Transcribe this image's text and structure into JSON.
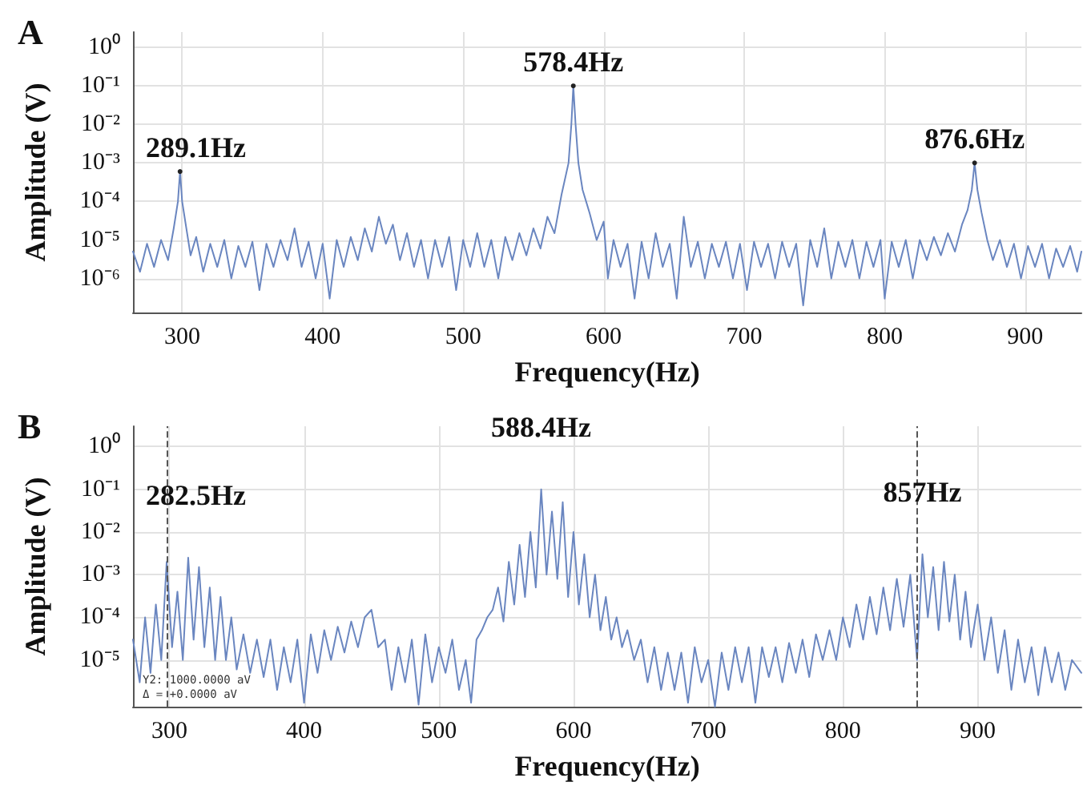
{
  "chart_data": [
    {
      "type": "line",
      "title": "A",
      "xlabel": "Frequency(Hz)",
      "ylabel": "Amplitude (V)",
      "log": "y",
      "grid": true,
      "xlim": [
        265,
        940
      ],
      "xticks": [
        300,
        400,
        500,
        600,
        700,
        800,
        900
      ],
      "ylim": [
        1.3e-07,
        2.5
      ],
      "yticks": [
        {
          "value": 1e-06,
          "label": "10⁻⁶"
        },
        {
          "value": 1e-05,
          "label": "10⁻⁵"
        },
        {
          "value": 0.0001,
          "label": "10⁻⁴"
        },
        {
          "value": 0.001,
          "label": "10⁻³"
        },
        {
          "value": 0.01,
          "label": "10⁻²"
        },
        {
          "value": 0.1,
          "label": "10⁻¹"
        },
        {
          "value": 1,
          "label": "10⁰"
        }
      ],
      "annotations": [
        {
          "text": "289.1Hz",
          "x": 298.5,
          "y": 0.0006
        },
        {
          "text": "578.4Hz",
          "x": 578.4,
          "y": 0.1
        },
        {
          "text": "876.6Hz",
          "x": 864,
          "y": 0.001
        }
      ],
      "series": [
        {
          "color": "#6a86c0",
          "x": [
            265,
            270,
            275,
            280,
            285,
            290,
            294,
            297,
            298.5,
            300,
            303,
            306,
            310,
            315,
            320,
            325,
            330,
            335,
            340,
            345,
            350,
            355,
            360,
            365,
            370,
            375,
            380,
            385,
            390,
            395,
            400,
            405,
            410,
            415,
            420,
            425,
            430,
            435,
            440,
            445,
            450,
            455,
            460,
            465,
            470,
            475,
            480,
            485,
            490,
            495,
            500,
            505,
            510,
            515,
            520,
            525,
            530,
            535,
            540,
            545,
            550,
            555,
            560,
            565,
            570,
            575,
            577,
            578.4,
            580,
            582,
            585,
            590,
            595,
            600,
            603,
            607,
            612,
            617,
            622,
            627,
            632,
            637,
            642,
            647,
            652,
            657,
            662,
            667,
            672,
            677,
            682,
            687,
            692,
            697,
            702,
            707,
            712,
            717,
            722,
            727,
            732,
            737,
            742,
            747,
            752,
            757,
            762,
            767,
            772,
            777,
            782,
            787,
            792,
            797,
            800,
            805,
            810,
            815,
            820,
            825,
            830,
            835,
            840,
            845,
            850,
            855,
            859,
            862,
            864,
            866,
            869,
            873,
            877,
            882,
            887,
            892,
            897,
            902,
            907,
            912,
            917,
            922,
            927,
            932,
            937,
            940
          ],
          "values": [
            5e-06,
            1.5e-06,
            8e-06,
            2e-06,
            1e-05,
            3e-06,
            2e-05,
            0.0001,
            0.0006,
            0.0001,
            2e-05,
            4e-06,
            1.2e-05,
            1.5e-06,
            8e-06,
            2e-06,
            1e-05,
            1e-06,
            7e-06,
            2e-06,
            9e-06,
            5e-07,
            8e-06,
            2e-06,
            1e-05,
            3e-06,
            2e-05,
            2e-06,
            9e-06,
            1e-06,
            8e-06,
            3e-07,
            1e-05,
            2e-06,
            1.2e-05,
            3e-06,
            2e-05,
            5e-06,
            4e-05,
            8e-06,
            2.5e-05,
            3e-06,
            1.5e-05,
            2e-06,
            1e-05,
            1e-06,
            1e-05,
            2e-06,
            1.2e-05,
            5e-07,
            1e-05,
            2e-06,
            1.5e-05,
            2e-06,
            1e-05,
            1e-06,
            1.2e-05,
            3e-06,
            1.5e-05,
            4e-06,
            2e-05,
            6e-06,
            4e-05,
            1.5e-05,
            0.00015,
            0.001,
            0.01,
            0.1,
            0.01,
            0.001,
            0.0002,
            5e-05,
            1e-05,
            3e-05,
            1e-06,
            1e-05,
            2e-06,
            8e-06,
            3e-07,
            9e-06,
            1e-06,
            1.5e-05,
            2e-06,
            8e-06,
            3e-07,
            4e-05,
            2e-06,
            9e-06,
            1e-06,
            8e-06,
            2e-06,
            9e-06,
            1e-06,
            8e-06,
            5e-07,
            9e-06,
            2e-06,
            8e-06,
            1e-06,
            9e-06,
            2e-06,
            8e-06,
            2e-07,
            1e-05,
            2e-06,
            2e-05,
            1e-06,
            9e-06,
            2e-06,
            1e-05,
            1e-06,
            9e-06,
            2e-06,
            1e-05,
            3e-07,
            9e-06,
            2e-06,
            1e-05,
            1e-06,
            1e-05,
            3e-06,
            1.2e-05,
            4e-06,
            1.5e-05,
            5e-06,
            2.5e-05,
            6e-05,
            0.0002,
            0.001,
            0.0002,
            5e-05,
            1e-05,
            3e-06,
            1e-05,
            2e-06,
            8e-06,
            1e-06,
            7e-06,
            2e-06,
            8e-06,
            1e-06,
            6e-06,
            2e-06,
            7e-06,
            1.5e-06,
            5e-06
          ]
        }
      ]
    },
    {
      "type": "line",
      "title": "B",
      "xlabel": "Frequency(Hz)",
      "ylabel": "Amplitude (V)",
      "log": "y",
      "grid": true,
      "xlim": [
        273,
        977
      ],
      "xticks": [
        300,
        400,
        500,
        600,
        700,
        800,
        900
      ],
      "ylim": [
        8e-07,
        3
      ],
      "yticks": [
        {
          "value": 1e-05,
          "label": "10⁻⁵"
        },
        {
          "value": 0.0001,
          "label": "10⁻⁴"
        },
        {
          "value": 0.001,
          "label": "10⁻³"
        },
        {
          "value": 0.01,
          "label": "10⁻²"
        },
        {
          "value": 0.1,
          "label": "10⁻¹"
        },
        {
          "value": 1,
          "label": "10⁰"
        }
      ],
      "annotations": [
        {
          "text": "282.5Hz",
          "x": 314,
          "y": 0.0025
        },
        {
          "text": "588.4Hz",
          "x": 576,
          "y": 0.1
        },
        {
          "text": "857Hz",
          "x": 859,
          "y": 0.003
        },
        "Y2: 1000.0000 aV",
        "Δ = +0.0000 aV"
      ],
      "ref_lines": [
        {
          "axis": "x",
          "value": 298,
          "color": "#555555",
          "line_style": "dashed"
        },
        {
          "axis": "x",
          "value": 855,
          "color": "#555555",
          "line_style": "dashed"
        }
      ],
      "series": [
        {
          "color": "#6a86c0",
          "x": [
            273,
            278,
            282,
            286,
            290,
            294,
            298,
            302,
            306,
            310,
            314,
            318,
            322,
            326,
            330,
            334,
            338,
            342,
            346,
            350,
            355,
            360,
            365,
            370,
            375,
            380,
            385,
            390,
            395,
            400,
            405,
            410,
            415,
            420,
            425,
            430,
            435,
            440,
            445,
            450,
            455,
            460,
            465,
            470,
            475,
            480,
            485,
            490,
            495,
            500,
            505,
            510,
            515,
            520,
            524,
            528,
            532,
            536,
            540,
            544,
            548,
            552,
            556,
            560,
            564,
            568,
            572,
            576,
            580,
            584,
            588,
            592,
            596,
            600,
            604,
            608,
            612,
            616,
            620,
            624,
            628,
            632,
            636,
            640,
            645,
            650,
            655,
            660,
            665,
            670,
            675,
            680,
            685,
            690,
            695,
            700,
            705,
            710,
            715,
            720,
            725,
            730,
            735,
            740,
            745,
            750,
            755,
            760,
            765,
            770,
            775,
            780,
            785,
            790,
            795,
            800,
            805,
            810,
            815,
            820,
            825,
            830,
            835,
            840,
            845,
            850,
            855,
            859,
            863,
            867,
            871,
            875,
            879,
            883,
            887,
            891,
            895,
            900,
            905,
            910,
            915,
            920,
            925,
            930,
            935,
            940,
            945,
            950,
            955,
            960,
            965,
            970,
            977
          ],
          "values": [
            3e-05,
            3e-06,
            0.0001,
            5e-06,
            0.0002,
            1e-05,
            0.002,
            2e-05,
            0.0004,
            1e-05,
            0.0025,
            3e-05,
            0.0015,
            2e-05,
            0.0005,
            1e-05,
            0.0003,
            1e-05,
            0.0001,
            6e-06,
            4e-05,
            5e-06,
            3e-05,
            4e-06,
            3e-05,
            2e-06,
            2e-05,
            3e-06,
            3e-05,
            1e-06,
            4e-05,
            5e-06,
            5e-05,
            1e-05,
            6e-05,
            1.5e-05,
            8e-05,
            2e-05,
            0.0001,
            0.00015,
            2e-05,
            3e-05,
            2e-06,
            2e-05,
            3e-06,
            3e-05,
            9e-07,
            4e-05,
            3e-06,
            2e-05,
            5e-06,
            3e-05,
            2e-06,
            1e-05,
            1e-06,
            3e-05,
            5e-05,
            0.0001,
            0.00015,
            0.0005,
            8e-05,
            0.002,
            0.0002,
            0.005,
            0.0003,
            0.01,
            0.0005,
            0.1,
            0.001,
            0.03,
            0.0008,
            0.05,
            0.0003,
            0.01,
            0.0002,
            0.003,
            0.0001,
            0.001,
            5e-05,
            0.0003,
            3e-05,
            0.0001,
            2e-05,
            5e-05,
            1e-05,
            3e-05,
            3e-06,
            2e-05,
            2e-06,
            1.5e-05,
            2e-06,
            1.5e-05,
            1e-06,
            2e-05,
            3e-06,
            1e-05,
            8e-07,
            1.5e-05,
            2e-06,
            2e-05,
            3e-06,
            2e-05,
            1e-06,
            2e-05,
            4e-06,
            2e-05,
            3e-06,
            2.5e-05,
            5e-06,
            3e-05,
            4e-06,
            4e-05,
            1e-05,
            5e-05,
            1e-05,
            0.0001,
            2e-05,
            0.0002,
            3e-05,
            0.0003,
            4e-05,
            0.0005,
            5e-05,
            0.0008,
            6e-05,
            0.001,
            1e-05,
            0.003,
            0.0001,
            0.0015,
            5e-05,
            0.002,
            8e-05,
            0.001,
            3e-05,
            0.0004,
            2e-05,
            0.0002,
            1e-05,
            0.0001,
            5e-06,
            5e-05,
            2e-06,
            3e-05,
            3e-06,
            2e-05,
            1.5e-06,
            2e-05,
            3e-06,
            1.5e-05,
            2e-06,
            1e-05,
            5e-06
          ]
        }
      ]
    }
  ]
}
